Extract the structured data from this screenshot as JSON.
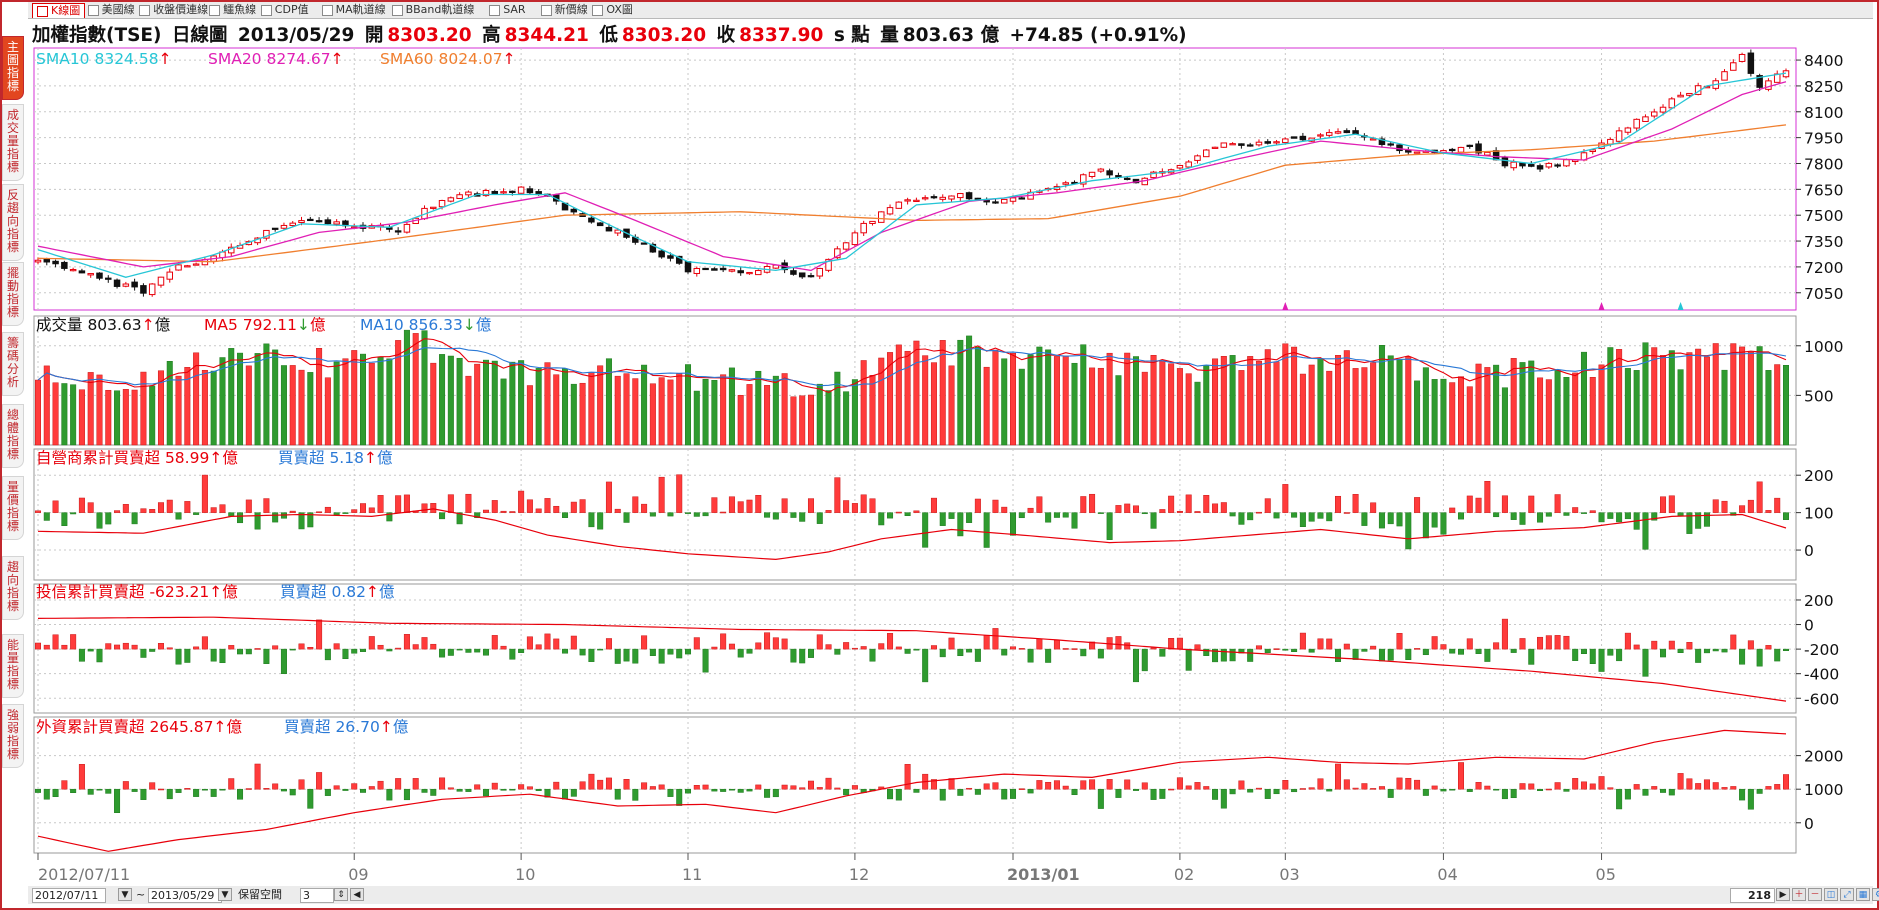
{
  "tabs": [
    {
      "label": "K線圖",
      "active": true
    },
    {
      "label": "美國線",
      "active": false
    },
    {
      "label": "收盤價連線",
      "active": false
    },
    {
      "label": "鱷魚線",
      "active": false
    },
    {
      "label": "CDP值",
      "active": false
    },
    {
      "label": "MA軌道線",
      "active": false
    },
    {
      "label": "BBand軌道線",
      "active": false
    },
    {
      "label": "SAR",
      "active": false
    },
    {
      "label": "新價線",
      "active": false
    },
    {
      "label": "OX圖",
      "active": false
    }
  ],
  "side_tabs": [
    {
      "label": "主圖指標",
      "active": true
    },
    {
      "label": "成交量指標",
      "active": false
    },
    {
      "label": "反趨向指標",
      "active": false
    },
    {
      "label": "擺動指標",
      "active": false
    },
    {
      "label": "籌碼分析",
      "active": false
    },
    {
      "label": "總體指標",
      "active": false
    },
    {
      "label": "量價指標",
      "active": false
    },
    {
      "label": "趨向指標",
      "active": false
    },
    {
      "label": "能量指標",
      "active": false
    },
    {
      "label": "強弱指標",
      "active": false
    }
  ],
  "header": {
    "name": "加權指數(TSE)",
    "period": "日線圖",
    "date": "2013/05/29",
    "open_label": "開",
    "open": "8303.20",
    "high_label": "高",
    "high": "8344.21",
    "low_label": "低",
    "low": "8303.20",
    "close_label": "收",
    "close": "8337.90",
    "unit": "s 點",
    "vol_label": "量",
    "volume": "803.63 億",
    "change": "+74.85 (+0.91%)"
  },
  "colors": {
    "up": "#ff3b3b",
    "down": "#2f9b2f",
    "sma10": "#27c6d6",
    "sma20": "#e020b5",
    "sma60": "#f07f2f",
    "ma5": "#e8000b",
    "ma10": "#2a79d6",
    "frame": "#c1272d"
  },
  "chart_data": [
    {
      "type": "candlestick",
      "name": "main",
      "legend": [
        {
          "label": "SMA10",
          "value": "8324.58",
          "arrow": "↑",
          "color": "#27c6d6"
        },
        {
          "label": "SMA20",
          "value": "8274.67",
          "arrow": "↑",
          "color": "#e020b5"
        },
        {
          "label": "SMA60",
          "value": "8024.07",
          "arrow": "↑",
          "color": "#f07f2f"
        }
      ],
      "y_ticks": [
        "8400",
        "8250",
        "8100",
        "7950",
        "7800",
        "7650",
        "7500",
        "7350",
        "7200",
        "7050"
      ],
      "ylim": [
        6950,
        8470
      ],
      "x_ticks": [
        "2012/07/11",
        "09",
        "10",
        "11",
        "12",
        "2013/01",
        "02",
        "03",
        "04",
        "05"
      ],
      "x_tick_index": [
        0,
        36,
        55,
        74,
        93,
        111,
        130,
        142,
        160,
        178
      ],
      "n": 200,
      "close_anchors": [
        [
          0,
          7230
        ],
        [
          4,
          7180
        ],
        [
          9,
          7100
        ],
        [
          12,
          7060
        ],
        [
          16,
          7200
        ],
        [
          20,
          7260
        ],
        [
          26,
          7400
        ],
        [
          31,
          7470
        ],
        [
          36,
          7440
        ],
        [
          41,
          7420
        ],
        [
          45,
          7560
        ],
        [
          49,
          7620
        ],
        [
          55,
          7650
        ],
        [
          58,
          7600
        ],
        [
          62,
          7480
        ],
        [
          66,
          7400
        ],
        [
          70,
          7300
        ],
        [
          74,
          7180
        ],
        [
          79,
          7170
        ],
        [
          84,
          7200
        ],
        [
          88,
          7140
        ],
        [
          93,
          7400
        ],
        [
          97,
          7550
        ],
        [
          101,
          7600
        ],
        [
          105,
          7620
        ],
        [
          109,
          7580
        ],
        [
          113,
          7620
        ],
        [
          118,
          7700
        ],
        [
          121,
          7760
        ],
        [
          125,
          7700
        ],
        [
          130,
          7790
        ],
        [
          134,
          7900
        ],
        [
          138,
          7920
        ],
        [
          142,
          7940
        ],
        [
          146,
          7960
        ],
        [
          150,
          7980
        ],
        [
          155,
          7880
        ],
        [
          160,
          7870
        ],
        [
          163,
          7900
        ],
        [
          167,
          7800
        ],
        [
          171,
          7780
        ],
        [
          175,
          7820
        ],
        [
          179,
          7950
        ],
        [
          183,
          8080
        ],
        [
          187,
          8200
        ],
        [
          191,
          8280
        ],
        [
          194,
          8420
        ],
        [
          196,
          8240
        ],
        [
          199,
          8337.9
        ]
      ],
      "sma10_anchors": [
        [
          0,
          7300
        ],
        [
          10,
          7140
        ],
        [
          20,
          7270
        ],
        [
          30,
          7450
        ],
        [
          40,
          7430
        ],
        [
          50,
          7620
        ],
        [
          58,
          7620
        ],
        [
          66,
          7420
        ],
        [
          74,
          7230
        ],
        [
          84,
          7180
        ],
        [
          92,
          7250
        ],
        [
          100,
          7560
        ],
        [
          110,
          7600
        ],
        [
          120,
          7700
        ],
        [
          130,
          7760
        ],
        [
          140,
          7900
        ],
        [
          150,
          7970
        ],
        [
          160,
          7860
        ],
        [
          170,
          7800
        ],
        [
          180,
          7920
        ],
        [
          190,
          8250
        ],
        [
          199,
          8324.58
        ]
      ],
      "sma20_anchors": [
        [
          0,
          7320
        ],
        [
          12,
          7200
        ],
        [
          22,
          7260
        ],
        [
          32,
          7400
        ],
        [
          42,
          7460
        ],
        [
          52,
          7560
        ],
        [
          60,
          7630
        ],
        [
          68,
          7470
        ],
        [
          78,
          7260
        ],
        [
          88,
          7180
        ],
        [
          96,
          7400
        ],
        [
          106,
          7580
        ],
        [
          116,
          7630
        ],
        [
          126,
          7700
        ],
        [
          136,
          7820
        ],
        [
          146,
          7930
        ],
        [
          156,
          7880
        ],
        [
          166,
          7840
        ],
        [
          176,
          7820
        ],
        [
          186,
          8000
        ],
        [
          194,
          8200
        ],
        [
          199,
          8274.67
        ]
      ],
      "sma60_anchors": [
        [
          0,
          7250
        ],
        [
          20,
          7230
        ],
        [
          40,
          7360
        ],
        [
          60,
          7500
        ],
        [
          80,
          7520
        ],
        [
          100,
          7470
        ],
        [
          115,
          7480
        ],
        [
          130,
          7610
        ],
        [
          142,
          7790
        ],
        [
          156,
          7850
        ],
        [
          170,
          7880
        ],
        [
          184,
          7930
        ],
        [
          199,
          8024.07
        ]
      ]
    },
    {
      "type": "bar",
      "name": "volume",
      "legend": [
        {
          "label": "成交量",
          "value": "803.63",
          "arrow": "↑",
          "unit": "億",
          "color": "#111111"
        },
        {
          "label": "MA5",
          "value": "792.11",
          "arrow": "↓",
          "unit": "億",
          "color": "#e8000b"
        },
        {
          "label": "MA10",
          "value": "856.33",
          "arrow": "↓",
          "unit": "億",
          "color": "#2a79d6"
        }
      ],
      "y_ticks": [
        "1000",
        "500"
      ],
      "ylim": [
        0,
        1300
      ],
      "anchors": [
        [
          0,
          700
        ],
        [
          10,
          680
        ],
        [
          18,
          800
        ],
        [
          25,
          950
        ],
        [
          30,
          800
        ],
        [
          38,
          850
        ],
        [
          42,
          1100
        ],
        [
          48,
          780
        ],
        [
          55,
          700
        ],
        [
          62,
          750
        ],
        [
          70,
          650
        ],
        [
          76,
          650
        ],
        [
          84,
          620
        ],
        [
          90,
          600
        ],
        [
          96,
          800
        ],
        [
          100,
          900
        ],
        [
          105,
          950
        ],
        [
          112,
          780
        ],
        [
          118,
          900
        ],
        [
          124,
          820
        ],
        [
          130,
          650
        ],
        [
          136,
          760
        ],
        [
          142,
          850
        ],
        [
          150,
          880
        ],
        [
          156,
          780
        ],
        [
          160,
          750
        ],
        [
          167,
          700
        ],
        [
          172,
          740
        ],
        [
          178,
          820
        ],
        [
          184,
          880
        ],
        [
          190,
          900
        ],
        [
          196,
          870
        ],
        [
          199,
          803.63
        ]
      ]
    },
    {
      "type": "bar",
      "name": "dealer",
      "legend": [
        {
          "label": "自營商累計買賣超",
          "value": "58.99",
          "arrow": "↑",
          "unit": "億",
          "color": "#e8000b"
        },
        {
          "label": "買賣超",
          "value": "5.18",
          "arrow": "↑",
          "unit": "億",
          "color": "#2a79d6"
        }
      ],
      "y_ticks": [
        "200",
        "100",
        "0"
      ],
      "ylim": [
        -80,
        270
      ],
      "bar_zero": 100,
      "line_anchors": [
        [
          0,
          50
        ],
        [
          12,
          45
        ],
        [
          22,
          90
        ],
        [
          30,
          95
        ],
        [
          38,
          90
        ],
        [
          45,
          110
        ],
        [
          52,
          80
        ],
        [
          58,
          40
        ],
        [
          66,
          10
        ],
        [
          74,
          -10
        ],
        [
          84,
          -25
        ],
        [
          90,
          -5
        ],
        [
          96,
          30
        ],
        [
          104,
          55
        ],
        [
          112,
          40
        ],
        [
          122,
          20
        ],
        [
          130,
          25
        ],
        [
          138,
          40
        ],
        [
          146,
          55
        ],
        [
          156,
          30
        ],
        [
          166,
          50
        ],
        [
          176,
          60
        ],
        [
          186,
          90
        ],
        [
          194,
          95
        ],
        [
          199,
          58.99
        ]
      ]
    },
    {
      "type": "bar",
      "name": "trust",
      "legend": [
        {
          "label": "投信累計買賣超",
          "value": "-623.21",
          "arrow": "↑",
          "unit": "億",
          "color": "#e8000b"
        },
        {
          "label": "買賣超",
          "value": "0.82",
          "arrow": "↑",
          "unit": "億",
          "color": "#2a79d6"
        }
      ],
      "y_ticks": [
        "200",
        "0",
        "-200",
        "-400",
        "-600"
      ],
      "ylim": [
        -720,
        330
      ],
      "bar_zero": -200,
      "line_anchors": [
        [
          0,
          50
        ],
        [
          20,
          60
        ],
        [
          40,
          10
        ],
        [
          60,
          0
        ],
        [
          80,
          -40
        ],
        [
          100,
          -50
        ],
        [
          115,
          -120
        ],
        [
          130,
          -200
        ],
        [
          150,
          -280
        ],
        [
          170,
          -380
        ],
        [
          185,
          -480
        ],
        [
          199,
          -623.21
        ]
      ]
    },
    {
      "type": "bar",
      "name": "foreign",
      "legend": [
        {
          "label": "外資累計買賣超",
          "value": "2645.87",
          "arrow": "↑",
          "unit": "億",
          "color": "#e8000b"
        },
        {
          "label": "買賣超",
          "value": "26.70",
          "arrow": "↑",
          "unit": "億",
          "color": "#2a79d6"
        }
      ],
      "y_ticks": [
        "2000",
        "1000",
        "0"
      ],
      "ylim": [
        -900,
        3150
      ],
      "bar_zero": 1000,
      "line_anchors": [
        [
          0,
          -400
        ],
        [
          8,
          -850
        ],
        [
          16,
          -500
        ],
        [
          26,
          -200
        ],
        [
          36,
          300
        ],
        [
          46,
          700
        ],
        [
          56,
          850
        ],
        [
          66,
          500
        ],
        [
          76,
          550
        ],
        [
          84,
          300
        ],
        [
          92,
          800
        ],
        [
          100,
          1200
        ],
        [
          110,
          1450
        ],
        [
          120,
          1350
        ],
        [
          130,
          1800
        ],
        [
          140,
          1950
        ],
        [
          148,
          1800
        ],
        [
          156,
          1750
        ],
        [
          166,
          1950
        ],
        [
          176,
          1900
        ],
        [
          184,
          2400
        ],
        [
          192,
          2750
        ],
        [
          199,
          2645.87
        ]
      ]
    }
  ],
  "status": {
    "start_date": "2012/07/11",
    "range_sep": "~",
    "end_date": "2013/05/29",
    "reserve_label": "保留空間",
    "reserve_value": "3",
    "count": "218"
  }
}
